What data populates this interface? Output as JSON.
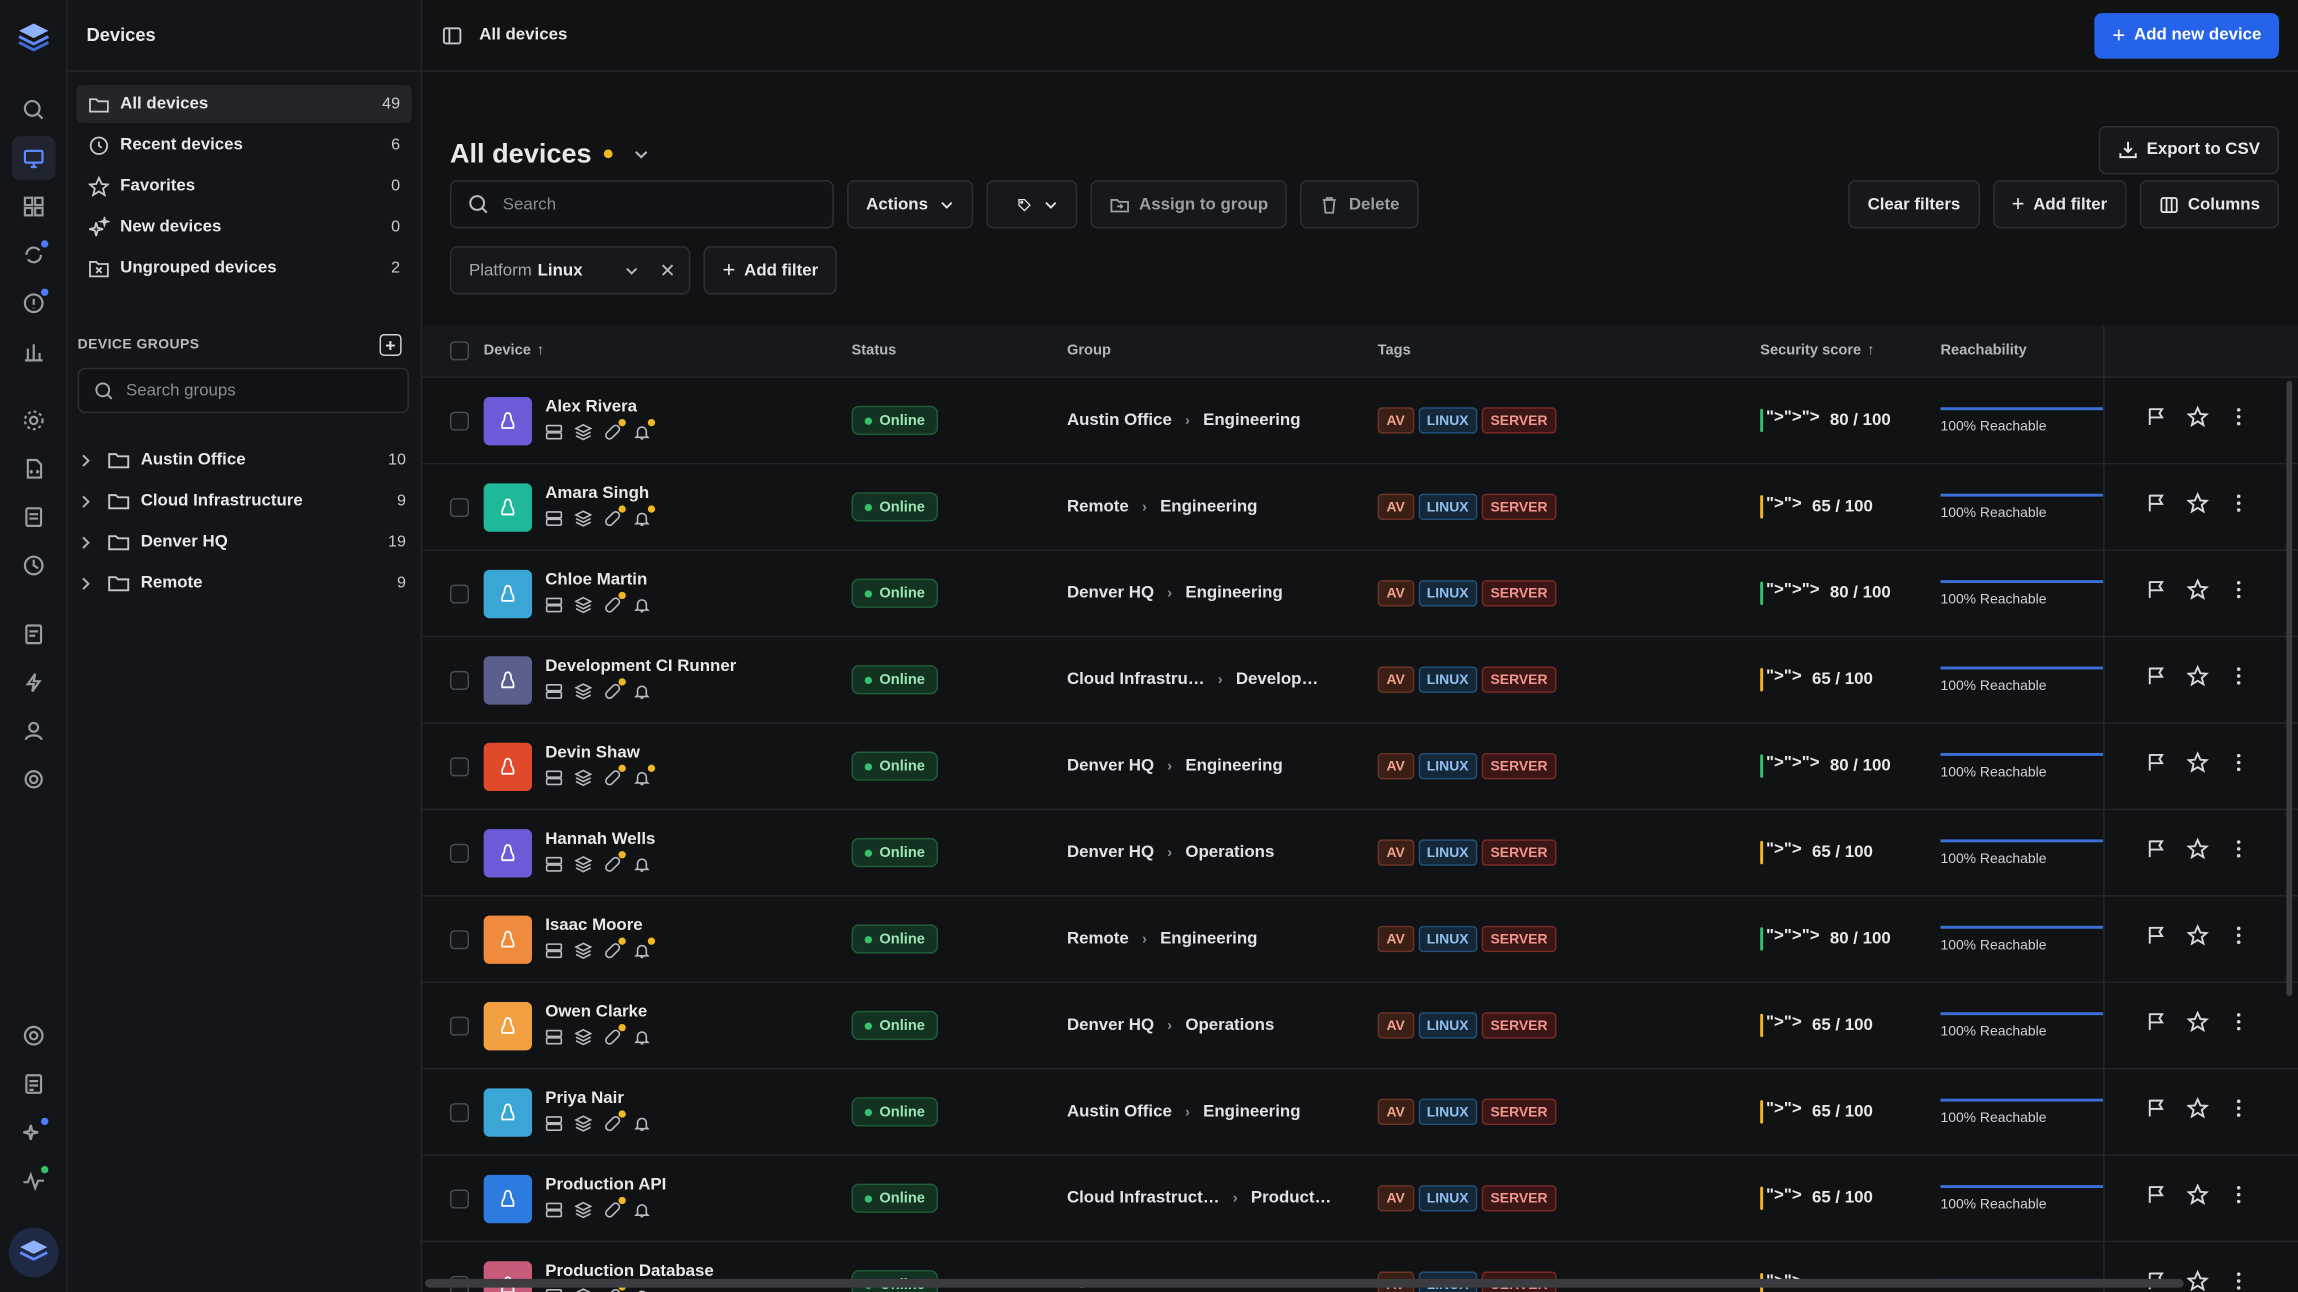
{
  "sidebar": {
    "title": "Devices",
    "nav": [
      {
        "label": "All devices",
        "count": "49"
      },
      {
        "label": "Recent devices",
        "count": "6"
      },
      {
        "label": "Favorites",
        "count": "0"
      },
      {
        "label": "New devices",
        "count": "0"
      },
      {
        "label": "Ungrouped devices",
        "count": "2"
      }
    ],
    "groups_heading": "DEVICE GROUPS",
    "groups_search_placeholder": "Search groups",
    "groups": [
      {
        "label": "Austin Office",
        "count": "10"
      },
      {
        "label": "Cloud Infrastructure",
        "count": "9"
      },
      {
        "label": "Denver HQ",
        "count": "19"
      },
      {
        "label": "Remote",
        "count": "9"
      }
    ]
  },
  "topbar": {
    "breadcrumb": "All devices",
    "add_button": "Add new device"
  },
  "page": {
    "title": "All devices",
    "export_button": "Export to CSV",
    "search_placeholder": "Search",
    "actions_label": "Actions",
    "assign_label": "Assign to group",
    "delete_label": "Delete",
    "clear_filters_label": "Clear filters",
    "add_filter_label": "Add filter",
    "columns_label": "Columns",
    "filter_chip": {
      "key": "Platform",
      "value": "Linux"
    },
    "add_filter_label_2": "Add filter"
  },
  "table": {
    "headers": {
      "device": "Device",
      "status": "Status",
      "group": "Group",
      "tags": "Tags",
      "score": "Security score",
      "reach": "Reachability"
    },
    "rows": [
      {
        "name": "Alex Rivera",
        "status": "Online",
        "group": "Austin Office",
        "sub": "Engineering",
        "score": "80 / 100",
        "level": "high",
        "reach": "100% Reachable",
        "color": "#6b5bd6",
        "bell_dot": true
      },
      {
        "name": "Amara Singh",
        "status": "Online",
        "group": "Remote",
        "sub": "Engineering",
        "score": "65 / 100",
        "level": "mid",
        "reach": "100% Reachable",
        "color": "#1fb89a",
        "bell_dot": true
      },
      {
        "name": "Chloe Martin",
        "status": "Online",
        "group": "Denver HQ",
        "sub": "Engineering",
        "score": "80 / 100",
        "level": "high",
        "reach": "100% Reachable",
        "color": "#3aa6d6",
        "bell_dot": false
      },
      {
        "name": "Development CI Runner",
        "status": "Online",
        "group": "Cloud Infrastru…",
        "sub": "Develop…",
        "score": "65 / 100",
        "level": "mid",
        "reach": "100% Reachable",
        "color": "#5a5f8e",
        "bell_dot": false
      },
      {
        "name": "Devin Shaw",
        "status": "Online",
        "group": "Denver HQ",
        "sub": "Engineering",
        "score": "80 / 100",
        "level": "high",
        "reach": "100% Reachable",
        "color": "#e04a2b",
        "bell_dot": true
      },
      {
        "name": "Hannah Wells",
        "status": "Online",
        "group": "Denver HQ",
        "sub": "Operations",
        "score": "65 / 100",
        "level": "mid",
        "reach": "100% Reachable",
        "color": "#6b5bd6",
        "bell_dot": false
      },
      {
        "name": "Isaac Moore",
        "status": "Online",
        "group": "Remote",
        "sub": "Engineering",
        "score": "80 / 100",
        "level": "high",
        "reach": "100% Reachable",
        "color": "#f08a3c",
        "bell_dot": true
      },
      {
        "name": "Owen Clarke",
        "status": "Online",
        "group": "Denver HQ",
        "sub": "Operations",
        "score": "65 / 100",
        "level": "mid",
        "reach": "100% Reachable",
        "color": "#f0a040",
        "bell_dot": false
      },
      {
        "name": "Priya Nair",
        "status": "Online",
        "group": "Austin Office",
        "sub": "Engineering",
        "score": "65 / 100",
        "level": "mid",
        "reach": "100% Reachable",
        "color": "#3aa6d6",
        "bell_dot": false
      },
      {
        "name": "Production API",
        "status": "Online",
        "group": "Cloud Infrastruct…",
        "sub": "Product…",
        "score": "65 / 100",
        "level": "mid",
        "reach": "100% Reachable",
        "color": "#2e7be0",
        "bell_dot": false
      },
      {
        "name": "Production Database",
        "status": "Online",
        "group": "",
        "sub": "",
        "score": "",
        "level": "mid",
        "reach": "",
        "color": "#c85a7a",
        "bell_dot": false
      }
    ],
    "tags": [
      "AV",
      "LINUX",
      "SERVER"
    ]
  },
  "colors": {
    "accent": "#2563eb",
    "online": "#35c26b",
    "score_high": "#35c26b",
    "score_mid": "#f2b824"
  }
}
